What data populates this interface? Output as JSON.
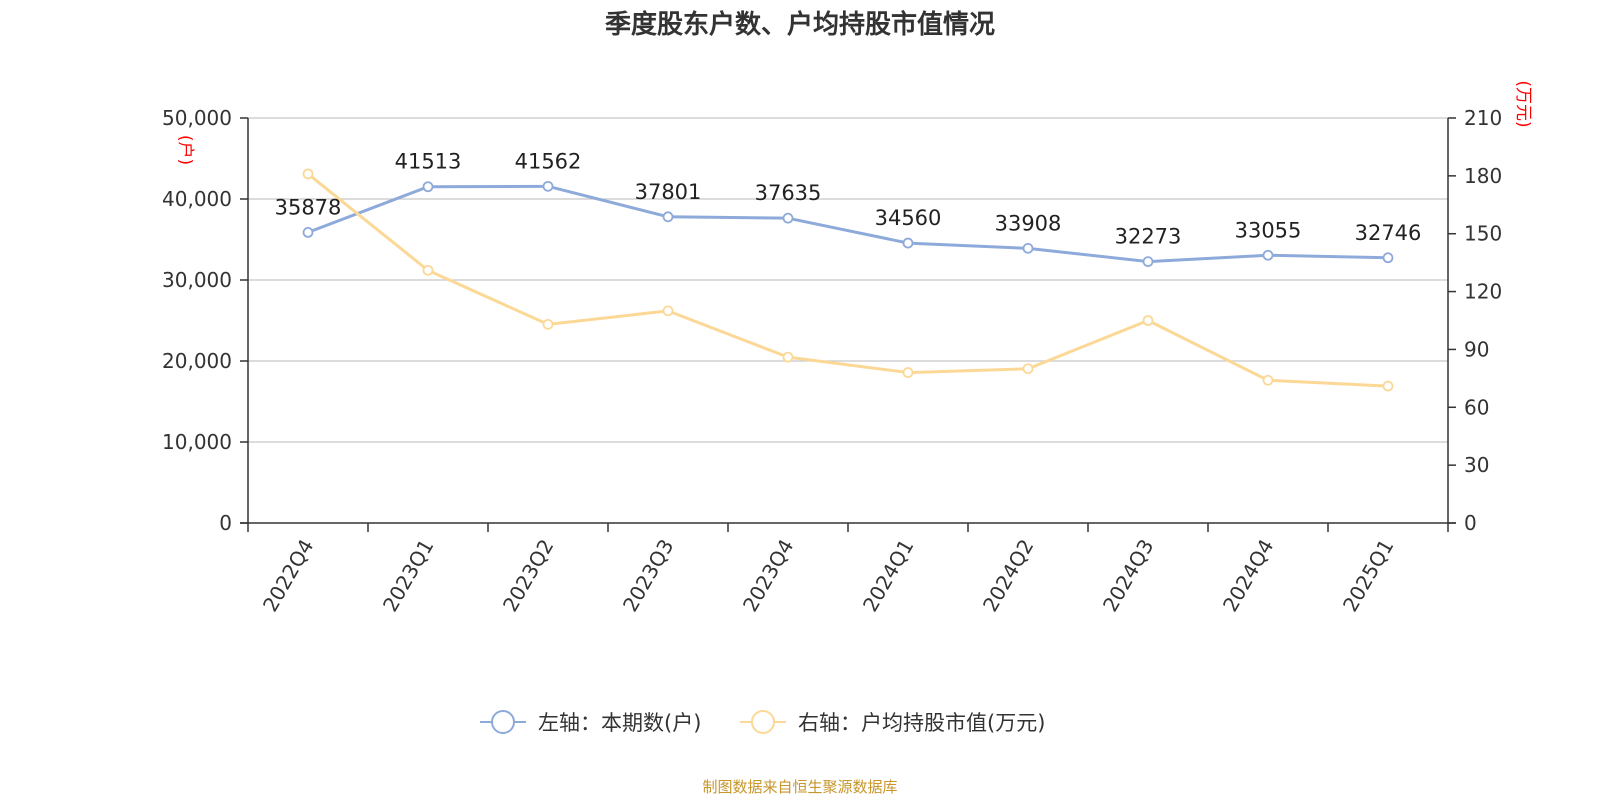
{
  "chart_data": {
    "type": "line",
    "title": "季度股东户数、户均持股市值情况",
    "categories": [
      "2022Q4",
      "2023Q1",
      "2023Q2",
      "2023Q3",
      "2023Q4",
      "2024Q1",
      "2024Q2",
      "2024Q3",
      "2024Q4",
      "2025Q1"
    ],
    "left_axis": {
      "unit": "(户)",
      "ylim": [
        0,
        50000
      ],
      "tick_values": [
        0,
        10000,
        20000,
        30000,
        40000,
        50000
      ],
      "tick_labels": [
        "0",
        "10,000",
        "20,000",
        "30,000",
        "40,000",
        "50,000"
      ]
    },
    "right_axis": {
      "unit": "(万元)",
      "ylim": [
        0,
        210
      ],
      "tick_values": [
        0,
        30,
        60,
        90,
        120,
        150,
        180,
        210
      ],
      "tick_labels": [
        "0",
        "30",
        "60",
        "90",
        "120",
        "150",
        "180",
        "210"
      ]
    },
    "series": [
      {
        "name": "左轴：本期数(户)",
        "axis": "left",
        "color": "#8eaadb",
        "values": [
          35878,
          41513,
          41562,
          37801,
          37635,
          34560,
          33908,
          32273,
          33055,
          32746
        ],
        "data_labels": [
          "35878",
          "41513",
          "41562",
          "37801",
          "37635",
          "34560",
          "33908",
          "32273",
          "33055",
          "32746"
        ]
      },
      {
        "name": "右轴：户均持股市值(万元)",
        "axis": "right",
        "color": "#fcd897",
        "values": [
          181,
          131,
          103,
          110,
          86,
          78,
          80,
          105,
          74,
          71
        ]
      }
    ],
    "grid": true,
    "legend_position": "bottom-center",
    "source": "制图数据来自恒生聚源数据库"
  }
}
